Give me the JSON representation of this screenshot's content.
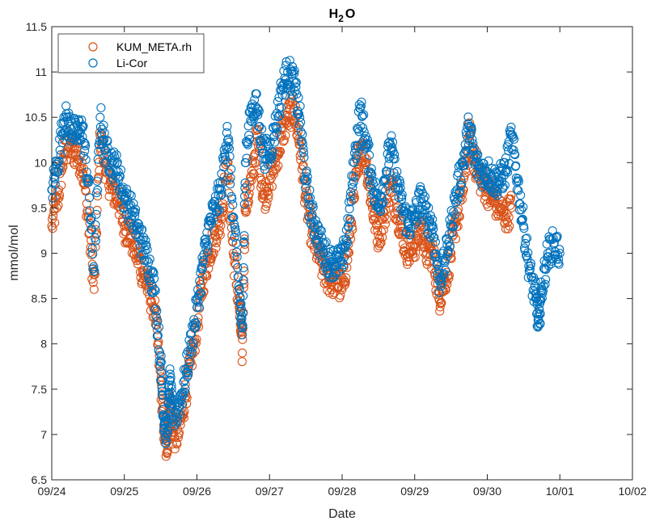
{
  "chart_data": {
    "type": "scatter",
    "title": {
      "base": "H",
      "sub": "2",
      "tail": "O"
    },
    "xlabel": "Date",
    "ylabel": "mmol/mol",
    "xlim": [
      "09/24",
      "10/02"
    ],
    "ylim": [
      6.5,
      11.5
    ],
    "x_ticks": [
      "09/24",
      "09/25",
      "09/26",
      "09/27",
      "09/28",
      "09/29",
      "09/30",
      "10/01",
      "10/02"
    ],
    "y_ticks": [
      "6.5",
      "7",
      "7.5",
      "8",
      "8.5",
      "9",
      "9.5",
      "10",
      "10.5",
      "11",
      "11.5"
    ],
    "grid": false,
    "legend_position": "top-left",
    "series": [
      {
        "name": "KUM_META.rh",
        "color": "#D95319",
        "points": [
          [
            "09/24 00:00",
            9.3
          ],
          [
            "09/24 02:00",
            9.6
          ],
          [
            "09/24 04:00",
            10.1
          ],
          [
            "09/24 06:00",
            10.2
          ],
          [
            "09/24 08:00",
            10.1
          ],
          [
            "09/24 10:00",
            10.0
          ],
          [
            "09/24 12:00",
            9.4
          ],
          [
            "09/24 14:00",
            8.6
          ],
          [
            "09/24 16:00",
            10.3
          ],
          [
            "09/24 18:00",
            9.9
          ],
          [
            "09/24 20:00",
            9.7
          ],
          [
            "09/24 22:00",
            9.6
          ],
          [
            "09/25 00:00",
            9.3
          ],
          [
            "09/25 02:00",
            9.2
          ],
          [
            "09/25 04:00",
            9.0
          ],
          [
            "09/25 06:00",
            8.8
          ],
          [
            "09/25 08:00",
            8.6
          ],
          [
            "09/25 10:00",
            8.4
          ],
          [
            "09/25 12:00",
            7.6
          ],
          [
            "09/25 13:00",
            7.1
          ],
          [
            "09/25 14:00",
            6.8
          ],
          [
            "09/25 15:00",
            7.4
          ],
          [
            "09/25 16:00",
            7.0
          ],
          [
            "09/25 18:00",
            7.0
          ],
          [
            "09/25 20:00",
            7.4
          ],
          [
            "09/25 22:00",
            7.8
          ],
          [
            "09/26 00:00",
            8.2
          ],
          [
            "09/26 02:00",
            8.7
          ],
          [
            "09/26 04:00",
            9.0
          ],
          [
            "09/26 06:00",
            9.2
          ],
          [
            "09/26 08:00",
            9.4
          ],
          [
            "09/26 10:00",
            10.0
          ],
          [
            "09/26 12:00",
            9.0
          ],
          [
            "09/26 14:00",
            8.4
          ],
          [
            "09/26 15:00",
            7.9
          ],
          [
            "09/26 16:00",
            9.5
          ],
          [
            "09/26 18:00",
            9.8
          ],
          [
            "09/26 20:00",
            10.3
          ],
          [
            "09/26 22:00",
            9.6
          ],
          [
            "09/27 00:00",
            9.8
          ],
          [
            "09/27 02:00",
            10.0
          ],
          [
            "09/27 04:00",
            10.3
          ],
          [
            "09/27 06:00",
            10.5
          ],
          [
            "09/27 08:00",
            10.6
          ],
          [
            "09/27 10:00",
            10.2
          ],
          [
            "09/27 12:00",
            9.6
          ],
          [
            "09/27 14:00",
            9.2
          ],
          [
            "09/27 16:00",
            9.0
          ],
          [
            "09/27 18:00",
            8.8
          ],
          [
            "09/27 20:00",
            8.7
          ],
          [
            "09/27 22:00",
            8.7
          ],
          [
            "09/28 00:00",
            8.6
          ],
          [
            "09/28 02:00",
            9.0
          ],
          [
            "09/28 04:00",
            9.6
          ],
          [
            "09/28 06:00",
            10.2
          ],
          [
            "09/28 08:00",
            10.0
          ],
          [
            "09/28 10:00",
            9.5
          ],
          [
            "09/28 12:00",
            9.2
          ],
          [
            "09/28 14:00",
            9.4
          ],
          [
            "09/28 16:00",
            9.8
          ],
          [
            "09/28 18:00",
            9.5
          ],
          [
            "09/28 20:00",
            9.2
          ],
          [
            "09/28 22:00",
            9.0
          ],
          [
            "09/29 00:00",
            9.1
          ],
          [
            "09/29 02:00",
            9.3
          ],
          [
            "09/29 04:00",
            9.0
          ],
          [
            "09/29 06:00",
            9.0
          ],
          [
            "09/29 08:00",
            8.5
          ],
          [
            "09/29 10:00",
            8.7
          ],
          [
            "09/29 12:00",
            9.0
          ],
          [
            "09/29 14:00",
            9.4
          ],
          [
            "09/29 16:00",
            9.7
          ],
          [
            "09/29 18:00",
            10.3
          ],
          [
            "09/29 20:00",
            10.0
          ],
          [
            "09/29 22:00",
            9.8
          ],
          [
            "09/30 00:00",
            9.7
          ],
          [
            "09/30 02:00",
            9.6
          ],
          [
            "09/30 04:00",
            9.5
          ],
          [
            "09/30 06:00",
            9.4
          ],
          [
            "09/30 08:00",
            9.5
          ]
        ]
      },
      {
        "name": "Li-Cor",
        "color": "#0072BD",
        "points": [
          [
            "09/24 00:00",
            9.7
          ],
          [
            "09/24 02:00",
            10.0
          ],
          [
            "09/24 04:00",
            10.5
          ],
          [
            "09/24 06:00",
            10.4
          ],
          [
            "09/24 08:00",
            10.3
          ],
          [
            "09/24 10:00",
            10.4
          ],
          [
            "09/24 12:00",
            9.8
          ],
          [
            "09/24 14:00",
            8.8
          ],
          [
            "09/24 16:00",
            10.5
          ],
          [
            "09/24 18:00",
            10.1
          ],
          [
            "09/24 20:00",
            10.0
          ],
          [
            "09/24 22:00",
            9.9
          ],
          [
            "09/25 00:00",
            9.6
          ],
          [
            "09/25 02:00",
            9.5
          ],
          [
            "09/25 04:00",
            9.3
          ],
          [
            "09/25 06:00",
            9.1
          ],
          [
            "09/25 08:00",
            8.9
          ],
          [
            "09/25 10:00",
            8.6
          ],
          [
            "09/25 12:00",
            7.8
          ],
          [
            "09/25 13:00",
            7.2
          ],
          [
            "09/25 14:00",
            7.0
          ],
          [
            "09/25 15:00",
            7.6
          ],
          [
            "09/25 16:00",
            7.2
          ],
          [
            "09/25 18:00",
            7.3
          ],
          [
            "09/25 20:00",
            7.6
          ],
          [
            "09/25 22:00",
            8.0
          ],
          [
            "09/26 00:00",
            8.4
          ],
          [
            "09/26 02:00",
            8.9
          ],
          [
            "09/26 04:00",
            9.3
          ],
          [
            "09/26 06:00",
            9.5
          ],
          [
            "09/26 08:00",
            9.7
          ],
          [
            "09/26 10:00",
            10.4
          ],
          [
            "09/26 12:00",
            9.4
          ],
          [
            "09/26 14:00",
            8.6
          ],
          [
            "09/26 15:00",
            8.1
          ],
          [
            "09/26 16:00",
            10.0
          ],
          [
            "09/26 18:00",
            10.6
          ],
          [
            "09/26 20:00",
            10.6
          ],
          [
            "09/26 22:00",
            10.1
          ],
          [
            "09/27 00:00",
            10.1
          ],
          [
            "09/27 02:00",
            10.4
          ],
          [
            "09/27 04:00",
            10.8
          ],
          [
            "09/27 06:00",
            11.0
          ],
          [
            "09/27 08:00",
            10.9
          ],
          [
            "09/27 10:00",
            10.5
          ],
          [
            "09/27 12:00",
            9.8
          ],
          [
            "09/27 14:00",
            9.4
          ],
          [
            "09/27 16:00",
            9.2
          ],
          [
            "09/27 18:00",
            9.0
          ],
          [
            "09/27 20:00",
            8.9
          ],
          [
            "09/27 22:00",
            8.9
          ],
          [
            "09/28 00:00",
            8.9
          ],
          [
            "09/28 02:00",
            9.3
          ],
          [
            "09/28 04:00",
            10.0
          ],
          [
            "09/28 06:00",
            10.6
          ],
          [
            "09/28 08:00",
            10.2
          ],
          [
            "09/28 10:00",
            9.8
          ],
          [
            "09/28 12:00",
            9.5
          ],
          [
            "09/28 14:00",
            9.8
          ],
          [
            "09/28 16:00",
            10.2
          ],
          [
            "09/28 18:00",
            9.8
          ],
          [
            "09/28 20:00",
            9.5
          ],
          [
            "09/28 22:00",
            9.3
          ],
          [
            "09/29 00:00",
            9.4
          ],
          [
            "09/29 02:00",
            9.6
          ],
          [
            "09/29 04:00",
            9.4
          ],
          [
            "09/29 06:00",
            9.3
          ],
          [
            "09/29 08:00",
            8.7
          ],
          [
            "09/29 10:00",
            8.9
          ],
          [
            "09/29 12:00",
            9.3
          ],
          [
            "09/29 14:00",
            9.7
          ],
          [
            "09/29 16:00",
            10.0
          ],
          [
            "09/29 18:00",
            10.4
          ],
          [
            "09/29 20:00",
            10.0
          ],
          [
            "09/29 22:00",
            9.9
          ],
          [
            "09/30 00:00",
            9.9
          ],
          [
            "09/30 02:00",
            9.8
          ],
          [
            "09/30 04:00",
            9.8
          ],
          [
            "09/30 06:00",
            9.9
          ],
          [
            "09/30 08:00",
            10.3
          ],
          [
            "09/30 10:00",
            9.8
          ],
          [
            "09/30 12:00",
            9.3
          ],
          [
            "09/30 14:00",
            8.8
          ],
          [
            "09/30 16:00",
            8.5
          ],
          [
            "09/30 17:00",
            8.2
          ],
          [
            "09/30 18:00",
            8.6
          ],
          [
            "09/30 20:00",
            9.0
          ],
          [
            "09/30 22:00",
            9.1
          ],
          [
            "10/01 00:00",
            9.0
          ]
        ]
      }
    ]
  }
}
